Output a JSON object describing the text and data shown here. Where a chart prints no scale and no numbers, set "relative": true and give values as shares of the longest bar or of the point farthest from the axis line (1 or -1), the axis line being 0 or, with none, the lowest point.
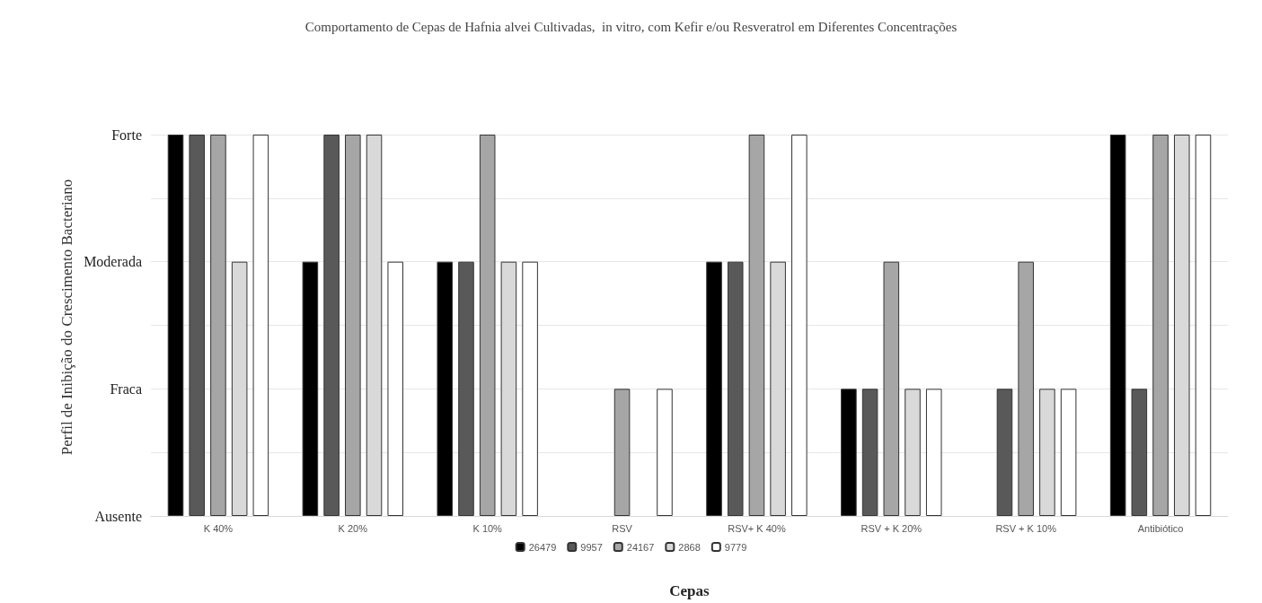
{
  "chart_data": {
    "type": "bar",
    "relative": true,
    "title": "Comportamento de Cepas de Hafnia alvei Cultivadas,  in vitro, com Kefir e/ou Resveratrol em Diferentes Concentrações",
    "xlabel": "Cepas",
    "ylabel": "Perfil de Inibição do Crescimento Bacteriano",
    "categories": [
      "K 40%",
      "K 20%",
      "K 10%",
      "RSV",
      "RSV+ K 40%",
      "RSV + K 20%",
      "RSV + K 10%",
      "Antibiótico"
    ],
    "series": [
      {
        "name": "26479",
        "color": "#000000",
        "values": [
          1,
          0.6667,
          0.6667,
          0,
          0.6667,
          0.3333,
          0,
          1
        ]
      },
      {
        "name": "9957",
        "color": "#595959",
        "values": [
          1,
          1,
          0.6667,
          0,
          0.6667,
          0.3333,
          0.3333,
          0.3333
        ]
      },
      {
        "name": "24167",
        "color": "#a6a6a6",
        "values": [
          1,
          1,
          1,
          0.3333,
          1,
          0.6667,
          0.6667,
          1
        ]
      },
      {
        "name": "2868",
        "color": "#d9d9d9",
        "values": [
          0.6667,
          1,
          0.6667,
          0,
          0.6667,
          0.3333,
          0.3333,
          1
        ]
      },
      {
        "name": "9779",
        "color": "#ffffff",
        "values": [
          1,
          0.6667,
          0.6667,
          0.3333,
          1,
          0.3333,
          0.3333,
          1
        ]
      }
    ],
    "ref_lines": [
      {
        "axis": "y",
        "value": 0,
        "label": "Ausente",
        "color": "#d9d9d9"
      },
      {
        "axis": "y",
        "value": 0.1667,
        "label": null,
        "color": "#e6e6e6"
      },
      {
        "axis": "y",
        "value": 0.3333,
        "label": "Fraca",
        "color": "#e6e6e6"
      },
      {
        "axis": "y",
        "value": 0.5,
        "label": null,
        "color": "#e6e6e6"
      },
      {
        "axis": "y",
        "value": 0.6667,
        "label": "Moderada",
        "color": "#e6e6e6"
      },
      {
        "axis": "y",
        "value": 0.8333,
        "label": null,
        "color": "#e6e6e6"
      },
      {
        "axis": "y",
        "value": 1,
        "label": "Forte",
        "color": "#e6e6e6"
      }
    ],
    "legend": "bottom"
  }
}
